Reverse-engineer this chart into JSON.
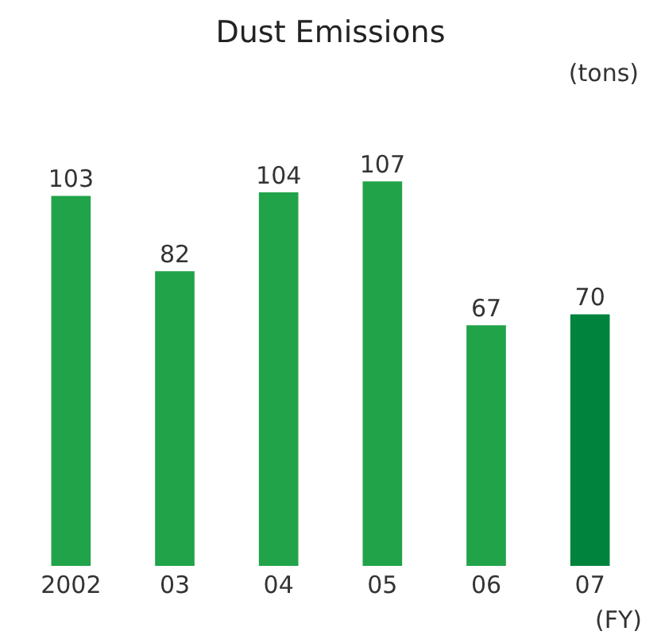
{
  "chart_data": {
    "type": "bar",
    "title": "Dust Emissions",
    "xlabel": "(FY)",
    "annotations": [
      "(tons)"
    ],
    "categories": [
      "2002",
      "03",
      "04",
      "05",
      "06",
      "07"
    ],
    "values": [
      103,
      82,
      104,
      107,
      67,
      70
    ],
    "colors": [
      "#21a349",
      "#21a349",
      "#21a349",
      "#21a349",
      "#21a349",
      "#00843d"
    ],
    "data_labels": true,
    "grid": false,
    "legend": false
  }
}
